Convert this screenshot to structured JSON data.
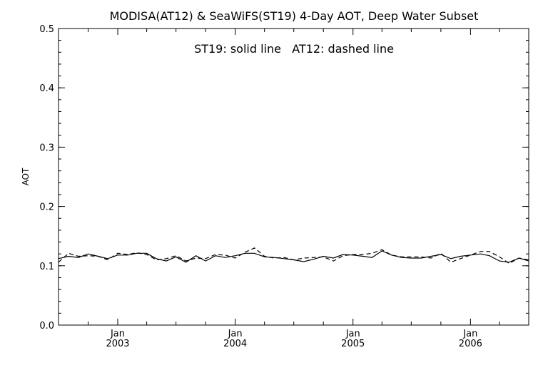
{
  "chart_data": {
    "type": "line",
    "title": "MODISA(AT12) & SeaWiFS(ST19) 4-Day AOT, Deep Water Subset",
    "annotation": "ST19: solid line   AT12: dashed line",
    "xlabel": "",
    "ylabel": "AOT",
    "ylim": [
      0.0,
      0.5
    ],
    "xlim": [
      "2002-07-01",
      "2006-07-01"
    ],
    "y_ticks": [
      "0.0",
      "0.1",
      "0.2",
      "0.3",
      "0.4",
      "0.5"
    ],
    "x_ticks": [
      {
        "date": "2003-01-01",
        "month": "Jan",
        "year": "2003"
      },
      {
        "date": "2004-01-01",
        "month": "Jan",
        "year": "2004"
      },
      {
        "date": "2005-01-01",
        "month": "Jan",
        "year": "2005"
      },
      {
        "date": "2006-01-01",
        "month": "Jan",
        "year": "2006"
      }
    ],
    "x_minor_ticks": [
      "2002-10-01",
      "2003-04-01",
      "2003-07-01",
      "2003-10-01",
      "2004-04-01",
      "2004-07-01",
      "2004-10-01",
      "2005-04-01",
      "2005-07-01",
      "2005-10-01",
      "2006-04-01"
    ],
    "grid": false,
    "x": [
      "2002-07-01",
      "2002-08-01",
      "2002-09-01",
      "2002-10-01",
      "2002-11-01",
      "2002-12-01",
      "2003-01-01",
      "2003-02-01",
      "2003-03-01",
      "2003-04-01",
      "2003-05-01",
      "2003-06-01",
      "2003-07-01",
      "2003-08-01",
      "2003-09-01",
      "2003-10-01",
      "2003-11-01",
      "2003-12-01",
      "2004-01-01",
      "2004-02-01",
      "2004-03-01",
      "2004-04-01",
      "2004-05-01",
      "2004-06-01",
      "2004-07-01",
      "2004-08-01",
      "2004-09-01",
      "2004-10-01",
      "2004-11-01",
      "2004-12-01",
      "2005-01-01",
      "2005-02-01",
      "2005-03-01",
      "2005-04-01",
      "2005-05-01",
      "2005-06-01",
      "2005-07-01",
      "2005-08-01",
      "2005-09-01",
      "2005-10-01",
      "2005-11-01",
      "2005-12-01",
      "2006-01-01",
      "2006-02-01",
      "2006-03-01",
      "2006-04-01",
      "2006-05-01",
      "2006-06-01",
      "2006-07-01"
    ],
    "series": [
      {
        "name": "ST19",
        "style": "solid",
        "values": [
          0.112,
          0.116,
          0.114,
          0.12,
          0.116,
          0.112,
          0.118,
          0.118,
          0.121,
          0.121,
          0.112,
          0.108,
          0.115,
          0.106,
          0.117,
          0.108,
          0.117,
          0.114,
          0.117,
          0.121,
          0.121,
          0.115,
          0.114,
          0.112,
          0.11,
          0.107,
          0.111,
          0.116,
          0.113,
          0.119,
          0.118,
          0.116,
          0.114,
          0.125,
          0.118,
          0.114,
          0.113,
          0.113,
          0.116,
          0.119,
          0.112,
          0.116,
          0.118,
          0.12,
          0.117,
          0.108,
          0.106,
          0.113,
          0.108
        ]
      },
      {
        "name": "AT12",
        "style": "dashed",
        "values": [
          0.106,
          0.121,
          0.116,
          0.117,
          0.116,
          0.11,
          0.121,
          0.119,
          0.122,
          0.119,
          0.11,
          0.112,
          0.117,
          0.108,
          0.113,
          0.112,
          0.119,
          0.118,
          0.113,
          0.123,
          0.13,
          0.116,
          0.113,
          0.114,
          0.11,
          0.113,
          0.114,
          0.115,
          0.108,
          0.117,
          0.119,
          0.119,
          0.121,
          0.127,
          0.118,
          0.115,
          0.115,
          0.115,
          0.113,
          0.121,
          0.106,
          0.112,
          0.118,
          0.124,
          0.124,
          0.115,
          0.104,
          0.113,
          0.11
        ]
      }
    ]
  }
}
